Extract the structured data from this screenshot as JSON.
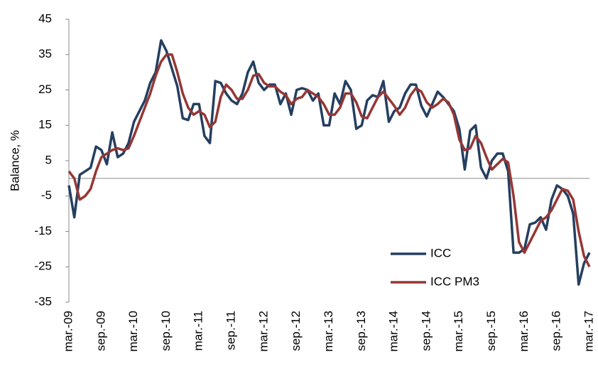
{
  "chart_data": {
    "type": "line",
    "y_label": "Balance, %",
    "categories": [
      "mar.-09",
      null,
      null,
      null,
      null,
      null,
      "sep.-09",
      null,
      null,
      null,
      null,
      null,
      "mar.-10",
      null,
      null,
      null,
      null,
      null,
      "sep.-10",
      null,
      null,
      null,
      null,
      null,
      "mar.-11",
      null,
      null,
      null,
      null,
      null,
      "sep.-11",
      null,
      null,
      null,
      null,
      null,
      "mar.-12",
      null,
      null,
      null,
      null,
      null,
      "sep.-12",
      null,
      null,
      null,
      null,
      null,
      "mar.-13",
      null,
      null,
      null,
      null,
      null,
      "sep.-13",
      null,
      null,
      null,
      null,
      null,
      "mar.-14",
      null,
      null,
      null,
      null,
      null,
      "sep.-14",
      null,
      null,
      null,
      null,
      null,
      "mar.-15",
      null,
      null,
      null,
      null,
      null,
      "sep.-15",
      null,
      null,
      null,
      null,
      null,
      "mar.-16",
      null,
      null,
      null,
      null,
      null,
      "sep.-16",
      null,
      null,
      null,
      null,
      null,
      "mar.-17"
    ],
    "series": [
      {
        "name": "ICC",
        "color": "#243f60",
        "values": [
          -2,
          -11,
          1,
          2,
          3,
          9,
          8,
          4,
          13,
          6,
          7,
          10,
          16,
          19,
          22,
          27,
          30,
          39,
          36,
          31,
          26,
          17,
          16.5,
          21,
          21,
          12,
          10,
          27.5,
          27,
          24,
          22,
          21,
          24,
          30,
          33,
          27,
          25,
          26.5,
          26.5,
          21,
          24,
          18,
          25,
          25.5,
          25,
          22,
          24,
          15,
          15,
          24,
          21,
          27.5,
          25,
          14,
          15,
          22,
          23.5,
          23,
          27.5,
          16,
          19,
          20,
          24,
          26.5,
          26.5,
          20.5,
          17.5,
          21,
          24.5,
          23,
          21,
          19,
          14,
          2.5,
          13.5,
          15,
          3,
          0,
          5,
          7,
          7,
          2,
          -21,
          -21,
          -20,
          -13,
          -12.5,
          -11,
          -14.5,
          -6,
          -2,
          -3,
          -5,
          -10,
          -30,
          -24,
          -21
        ]
      },
      {
        "name": "ICC PM3",
        "color": "#953735",
        "values": [
          2,
          0,
          -6,
          -5,
          -3,
          2,
          6,
          7,
          8,
          8.5,
          8,
          8.5,
          12,
          16,
          20,
          24,
          29,
          33,
          35,
          35,
          30,
          24,
          20,
          18,
          19,
          18,
          14.5,
          16,
          23,
          26.5,
          25,
          22.5,
          22.5,
          25,
          29,
          29.5,
          27,
          26,
          26,
          24.5,
          23.5,
          21,
          22.5,
          23,
          25,
          24,
          23,
          21,
          18,
          18,
          20,
          24,
          24,
          21.5,
          17.5,
          17,
          20,
          23,
          24.5,
          22.5,
          20.5,
          18,
          20,
          23.5,
          25.5,
          24.5,
          21.5,
          20,
          21,
          22.5,
          21.5,
          18,
          11,
          8,
          8.5,
          12,
          10,
          6,
          2.5,
          4,
          5.5,
          4.5,
          -5,
          -18,
          -21,
          -18,
          -15,
          -12,
          -11,
          -9,
          -6,
          -3,
          -3.5,
          -6,
          -15,
          -22,
          -25
        ]
      }
    ],
    "ylim": [
      -35,
      45
    ],
    "yticks": [
      -35,
      -25,
      -15,
      -5,
      5,
      15,
      25,
      35,
      45
    ],
    "grid": false,
    "legend": "lower right"
  }
}
